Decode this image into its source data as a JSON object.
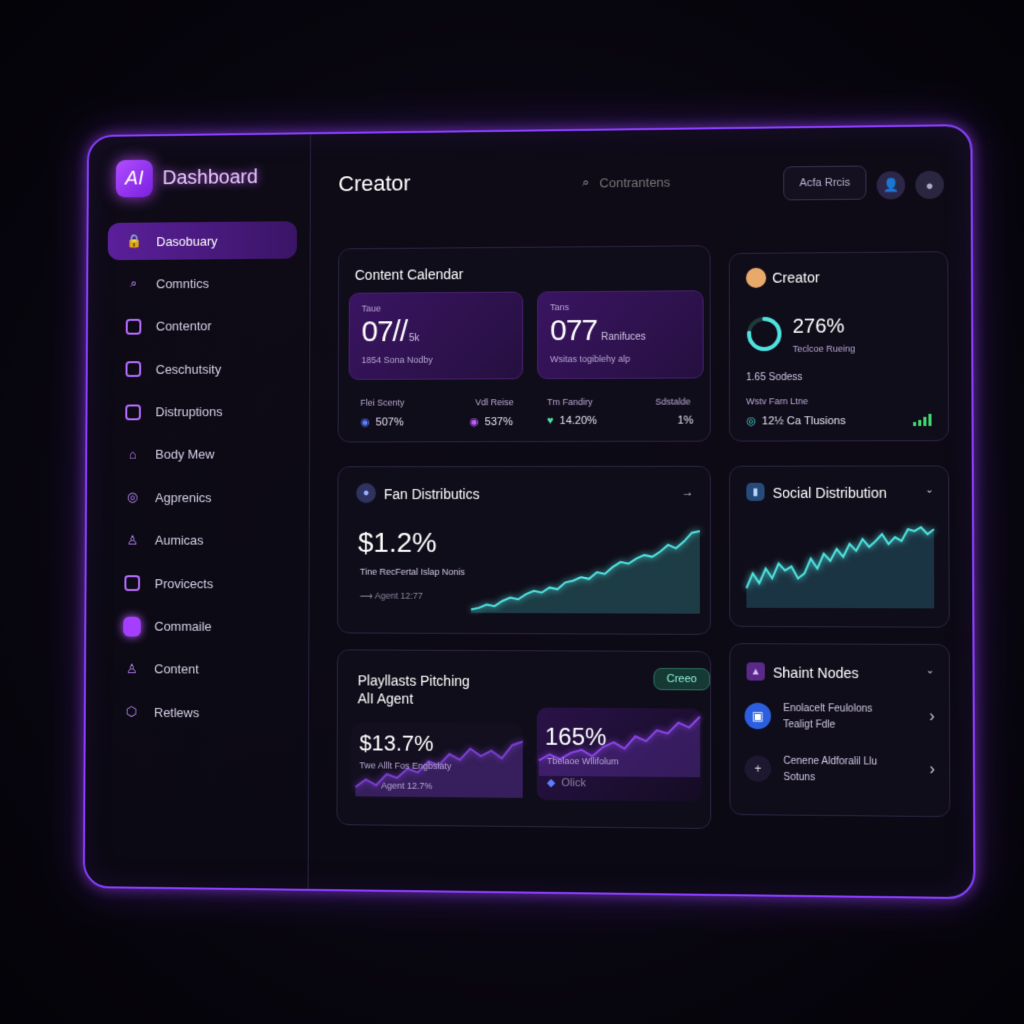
{
  "brand": {
    "logo_text": "AI",
    "name": "Dashboard"
  },
  "sidebar": {
    "items": [
      {
        "label": "Dasobuary",
        "icon": "lock-icon",
        "active": true
      },
      {
        "label": "Comntics",
        "icon": "search-icon"
      },
      {
        "label": "Contentor",
        "icon": "edit-icon"
      },
      {
        "label": "Ceschutsity",
        "icon": "id-card-icon"
      },
      {
        "label": "Distruptions",
        "icon": "list-icon"
      },
      {
        "label": "Body Mew",
        "icon": "home-icon"
      },
      {
        "label": "Agprenics",
        "icon": "globe-icon"
      },
      {
        "label": "Aumicas",
        "icon": "user-icon"
      },
      {
        "label": "Provicects",
        "icon": "grid-icon"
      },
      {
        "label": "Commaile",
        "icon": "link-icon"
      },
      {
        "label": "Content",
        "icon": "person-icon"
      },
      {
        "label": "Retlews",
        "icon": "hexagon-icon"
      }
    ]
  },
  "header": {
    "title": "Creator",
    "search_placeholder": "Contrantens",
    "button_label": "Acfa Rrcis"
  },
  "content_calendar": {
    "title": "Content Calendar",
    "tile1": {
      "label": "Taue",
      "value": "07//",
      "suffix": "5k",
      "caption": "1854 Sona Nodby"
    },
    "tile2": {
      "label": "Tans",
      "value": "077",
      "suffix": "Ranifuces",
      "caption": "Wsitas togiblehy alp"
    },
    "stats": [
      {
        "label": "Flei Scenty",
        "value": "507%"
      },
      {
        "label": "Vdl Reise",
        "value": "537%"
      },
      {
        "label": "Tm Fandiry",
        "value": "14.20%"
      },
      {
        "label": "Sdstalde",
        "value": "1%"
      }
    ]
  },
  "creator_card": {
    "title": "Creator",
    "percent": "276%",
    "percent_caption": "Teclcoe Rueing",
    "ring_value": 0.76,
    "subtext": "1.65 Sodess",
    "small_label": "Wstv  Farn Ltne",
    "detail": "12½ Ca Tlusions"
  },
  "fan_distributions": {
    "title": "Fan Distributics",
    "value": "$1.2%",
    "caption": "Tine RecFertal Islap Nonis",
    "agent": "Agent 12:77"
  },
  "social_distribution": {
    "title": "Social Distribution"
  },
  "playlists": {
    "title_line1": "Playllasts Pitching",
    "title_line2": "AlI Agent",
    "pill": "Creeo",
    "value1": "$13.7%",
    "caption1": "Twe Alllt Fos Engbslaty",
    "agent1": "Agent 12.7%",
    "value2": "165%",
    "caption2": "Tbelaoe Wllifolum",
    "action2": "Olick"
  },
  "shaint_nodes": {
    "title": "Shaint Nodes",
    "rows": [
      {
        "line1": "Enolacelt Feulolons",
        "line2": "Tealigt Fdle",
        "icon": "image-icon"
      },
      {
        "line1": "Cenene Aldforalil Llu",
        "line2": "Sotuns",
        "icon": "plus-icon"
      }
    ]
  },
  "chart_data": [
    {
      "type": "area",
      "name": "fan-distribution-chart",
      "values": [
        2,
        3,
        5,
        4,
        7,
        9,
        8,
        11,
        13,
        12,
        15,
        14,
        18,
        19,
        21,
        20,
        24,
        23,
        27,
        30,
        29,
        32,
        34,
        33,
        36,
        40,
        38,
        42,
        47,
        48
      ]
    },
    {
      "type": "area",
      "name": "social-distribution-chart",
      "values": [
        20,
        35,
        25,
        40,
        30,
        45,
        38,
        42,
        30,
        35,
        50,
        40,
        55,
        48,
        60,
        52,
        65,
        58,
        70,
        62,
        68,
        75,
        65,
        72,
        68,
        80,
        78,
        82,
        75,
        80
      ]
    },
    {
      "type": "area",
      "name": "playlist-chart-left",
      "values": [
        10,
        18,
        12,
        24,
        20,
        30,
        26,
        38,
        34,
        46,
        40,
        52,
        44,
        50,
        42,
        56,
        60
      ]
    },
    {
      "type": "area",
      "name": "playlist-chart-right",
      "values": [
        20,
        28,
        22,
        30,
        34,
        26,
        38,
        44,
        36,
        52,
        46,
        60,
        56,
        70,
        64,
        78
      ]
    }
  ],
  "colors": {
    "accent": "#a53fff",
    "teal": "#4fe3e0",
    "purple_line": "#7b3fd1"
  }
}
